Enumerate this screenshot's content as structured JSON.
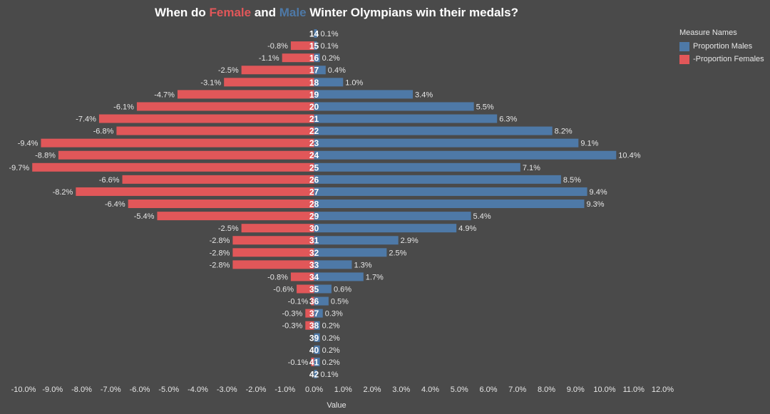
{
  "title": {
    "part1": "When do ",
    "female": "Female",
    "part2": " and ",
    "male": "Male",
    "part3": " Winter Olympians win their medals?"
  },
  "colors": {
    "background": "#4a4a4a",
    "male": "#4e79a7",
    "female": "#e15759",
    "text": "#e6e6e6"
  },
  "legend": {
    "title": "Measure Names",
    "items": [
      {
        "label": "Proportion Males",
        "color": "#4e79a7"
      },
      {
        "label": "-Proportion Females",
        "color": "#e15759"
      }
    ]
  },
  "chart_data": {
    "type": "bar",
    "orientation": "horizontal-diverging",
    "title": "When do Female and Male Winter Olympians win their medals?",
    "xlabel": "Value",
    "ylabel": "",
    "xlim": [
      -10,
      12
    ],
    "x_ticks": [
      "-10.0%",
      "-9.0%",
      "-8.0%",
      "-7.0%",
      "-6.0%",
      "-5.0%",
      "-4.0%",
      "-3.0%",
      "-2.0%",
      "-1.0%",
      "0.0%",
      "1.0%",
      "2.0%",
      "3.0%",
      "4.0%",
      "5.0%",
      "6.0%",
      "7.0%",
      "8.0%",
      "9.0%",
      "10.0%",
      "11.0%",
      "12.0%"
    ],
    "x_tick_values": [
      -10,
      -9,
      -8,
      -7,
      -6,
      -5,
      -4,
      -3,
      -2,
      -1,
      0,
      1,
      2,
      3,
      4,
      5,
      6,
      7,
      8,
      9,
      10,
      11,
      12
    ],
    "categories": [
      "14",
      "15",
      "16",
      "17",
      "18",
      "19",
      "20",
      "21",
      "22",
      "23",
      "24",
      "25",
      "26",
      "27",
      "28",
      "29",
      "30",
      "31",
      "32",
      "33",
      "34",
      "35",
      "36",
      "37",
      "38",
      "39",
      "40",
      "41",
      "42"
    ],
    "series": [
      {
        "name": "Proportion Males",
        "values": [
          0.1,
          0.1,
          0.2,
          0.4,
          1.0,
          3.4,
          5.5,
          6.3,
          8.2,
          9.1,
          10.4,
          7.1,
          8.5,
          9.4,
          9.3,
          5.4,
          4.9,
          2.9,
          2.5,
          1.3,
          1.7,
          0.6,
          0.5,
          0.3,
          0.2,
          0.2,
          0.2,
          0.2,
          0.1
        ],
        "labels": [
          "0.1%",
          "0.1%",
          "0.2%",
          "0.4%",
          "1.0%",
          "3.4%",
          "5.5%",
          "6.3%",
          "8.2%",
          "9.1%",
          "10.4%",
          "7.1%",
          "8.5%",
          "9.4%",
          "9.3%",
          "5.4%",
          "4.9%",
          "2.9%",
          "2.5%",
          "1.3%",
          "1.7%",
          "0.6%",
          "0.5%",
          "0.3%",
          "0.2%",
          "0.2%",
          "0.2%",
          "0.2%",
          "0.1%"
        ]
      },
      {
        "name": "-Proportion Females",
        "values": [
          null,
          -0.8,
          -1.1,
          -2.5,
          -3.1,
          -4.7,
          -6.1,
          -7.4,
          -6.8,
          -9.4,
          -8.8,
          -9.7,
          -6.6,
          -8.2,
          -6.4,
          -5.4,
          -2.5,
          -2.8,
          -2.8,
          -2.8,
          -0.8,
          -0.6,
          -0.1,
          -0.3,
          -0.3,
          null,
          null,
          -0.1,
          null
        ],
        "labels": [
          "",
          "-0.8%",
          "-1.1%",
          "-2.5%",
          "-3.1%",
          "-4.7%",
          "-6.1%",
          "-7.4%",
          "-6.8%",
          "-9.4%",
          "-8.8%",
          "-9.7%",
          "-6.6%",
          "-8.2%",
          "-6.4%",
          "-5.4%",
          "-2.5%",
          "-2.8%",
          "-2.8%",
          "-2.8%",
          "-0.8%",
          "-0.6%",
          "-0.1%",
          "-0.3%",
          "-0.3%",
          "",
          "",
          "-0.1%",
          ""
        ]
      }
    ],
    "legend_position": "right",
    "grid": false
  }
}
